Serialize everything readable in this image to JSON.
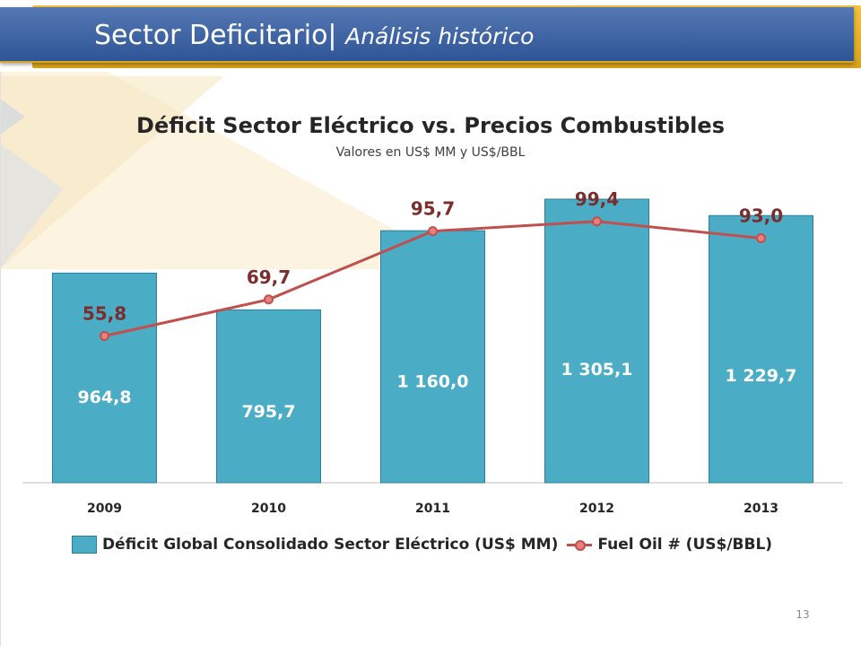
{
  "header": {
    "title": "Sector Deficitario|",
    "subtitle": "Análisis histórico"
  },
  "page_number": "13",
  "colors": {
    "bar": "#4bacc6",
    "bar_border": "#2c7f96",
    "line": "#c0504d",
    "marker_fill": "#e98080",
    "line_label": "#7b2c2c",
    "header_blue": "#2f5597",
    "header_gold": "#e7b42b"
  },
  "chart_data": {
    "type": "bar",
    "title": "Déficit Sector Eléctrico vs. Precios Combustibles",
    "subtitle": "Valores en US$ MM y US$/BBL",
    "categories": [
      "2009",
      "2010",
      "2011",
      "2012",
      "2013"
    ],
    "series": [
      {
        "name": "Déficit Global Consolidado Sector Eléctrico (US$ MM)",
        "type": "bar",
        "values": [
          964.8,
          795.7,
          1160.0,
          1305.1,
          1229.7
        ],
        "labels": [
          "964,8",
          "795,7",
          "1 160,0",
          "1 305,1",
          "1 229,7"
        ]
      },
      {
        "name": "Fuel Oil # (US$/BBL)",
        "type": "line",
        "values": [
          55.8,
          69.7,
          95.7,
          99.4,
          93.0
        ],
        "labels": [
          "55,8",
          "69,7",
          "95,7",
          "99,4",
          "93,0"
        ]
      }
    ],
    "bar_ylim": [
      0,
      1350
    ],
    "line_ylim": [
      0,
      145
    ],
    "grid": false,
    "legend_position": "bottom"
  }
}
